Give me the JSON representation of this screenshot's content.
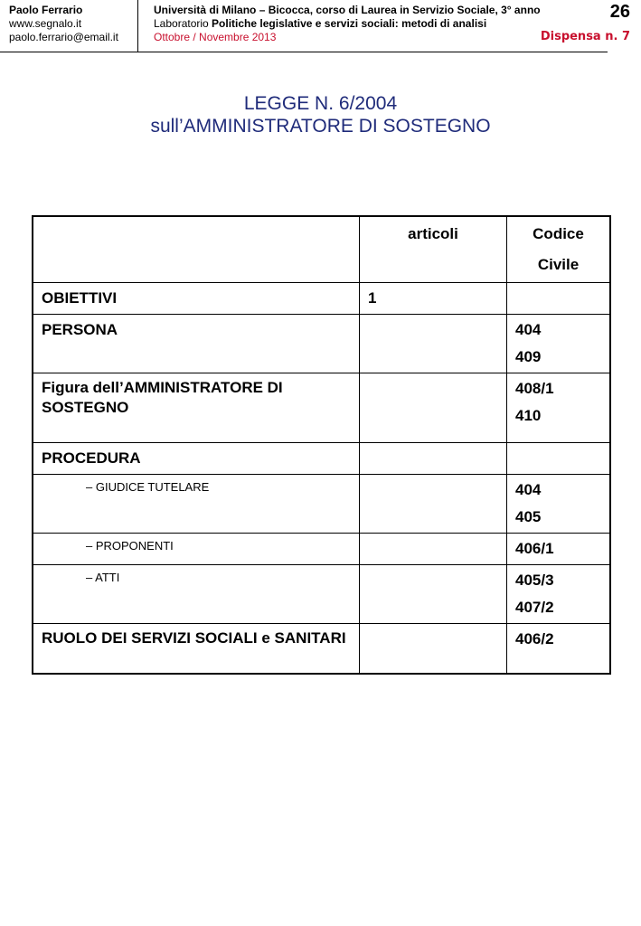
{
  "header": {
    "author": "Paolo Ferrario",
    "website": "www.segnalo.it",
    "email": "paolo.ferrario@email.it",
    "line1": "Università di Milano – Bicocca, corso di  Laurea in Servizio Sociale, 3° anno",
    "line2_prefix": "Laboratorio ",
    "line2_bold": "Politiche legislative e servizi sociali: metodi di analisi",
    "line3": "Ottobre / Novembre 2013",
    "page_number": "26",
    "dispensa": "Dispensa n. 7"
  },
  "title": {
    "line1": "LEGGE N. 6/2004",
    "line2": "sull’AMMINISTRATORE DI SOSTEGNO",
    "color": "#1f2b7a"
  },
  "table": {
    "headers": [
      "",
      "articoli",
      "Codice Civile"
    ],
    "rows": [
      {
        "label": "OBIETTIVI",
        "articoli": "1",
        "cc": []
      },
      {
        "label": "PERSONA",
        "articoli": "",
        "cc": [
          "404",
          "409"
        ]
      },
      {
        "label": "Figura dell’AMMINISTRATORE DI SOSTEGNO",
        "articoli": "",
        "cc": [
          "408/1",
          "410"
        ]
      },
      {
        "label": "PROCEDURA",
        "articoli": "",
        "cc": []
      },
      {
        "label": "– GIUDICE TUTELARE",
        "articoli": "",
        "cc": [
          "404",
          "405"
        ]
      },
      {
        "label": "– PROPONENTI",
        "articoli": "",
        "cc": [
          "406/1"
        ]
      },
      {
        "label": "– ATTI",
        "articoli": "",
        "cc": [
          "405/3",
          "407/2"
        ]
      },
      {
        "label": "RUOLO DEI SERVIZI SOCIALI e SANITARI",
        "articoli": "",
        "cc": [
          "406/2"
        ]
      }
    ]
  }
}
